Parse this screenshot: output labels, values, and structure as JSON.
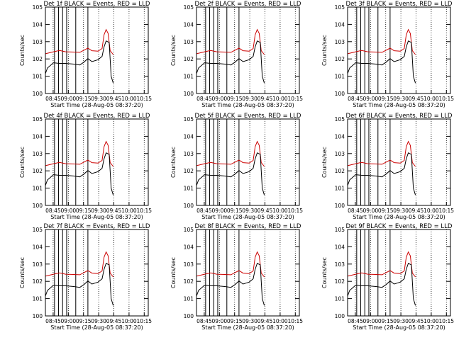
{
  "figure": {
    "xlabel": "Start Time (28-Aug-05 08:37:20)",
    "ylabel": "Counts/sec"
  },
  "shared": {
    "type": "line",
    "yscale": "log",
    "ylim": [
      1,
      100000
    ],
    "ytick_labels": [
      "10^0",
      "10^1",
      "10^2",
      "10^3",
      "10^4",
      "10^5"
    ],
    "xlim": [
      "08:37:20",
      "10:19:00"
    ],
    "xtick_labels": [
      "08:45",
      "09:00",
      "09:15",
      "09:30",
      "09:45",
      "10:00",
      "10:15"
    ],
    "series_colors": {
      "events": "#000000",
      "lld": "#cc0000"
    }
  },
  "chart_data": [
    {
      "title": "Det 1f BLACK = Events, RED = LLD",
      "events": [
        [
          0,
          14
        ],
        [
          2,
          30
        ],
        [
          8,
          60
        ],
        [
          14,
          55
        ],
        [
          20,
          55
        ],
        [
          28,
          50
        ],
        [
          34,
          45
        ],
        [
          38,
          65
        ],
        [
          42,
          105
        ],
        [
          46,
          70
        ],
        [
          52,
          90
        ],
        [
          56,
          140
        ],
        [
          58,
          500
        ],
        [
          60,
          1100
        ],
        [
          63,
          900
        ],
        [
          65,
          10
        ],
        [
          67,
          4
        ]
      ],
      "lld": [
        [
          0,
          200
        ],
        [
          8,
          260
        ],
        [
          14,
          310
        ],
        [
          20,
          260
        ],
        [
          28,
          250
        ],
        [
          34,
          240
        ],
        [
          38,
          320
        ],
        [
          42,
          420
        ],
        [
          46,
          300
        ],
        [
          52,
          280
        ],
        [
          56,
          400
        ],
        [
          58,
          2500
        ],
        [
          60,
          5000
        ],
        [
          62,
          3000
        ],
        [
          64,
          300
        ],
        [
          67,
          180
        ]
      ],
      "vlines": [
        9,
        13,
        17,
        21,
        30,
        42
      ]
    },
    {
      "title": "Det 2f BLACK = Events, RED = LLD",
      "events": [
        [
          0,
          14
        ],
        [
          2,
          30
        ],
        [
          8,
          60
        ],
        [
          14,
          55
        ],
        [
          20,
          55
        ],
        [
          28,
          50
        ],
        [
          34,
          45
        ],
        [
          38,
          65
        ],
        [
          42,
          105
        ],
        [
          46,
          70
        ],
        [
          52,
          90
        ],
        [
          56,
          140
        ],
        [
          58,
          500
        ],
        [
          60,
          1100
        ],
        [
          63,
          900
        ],
        [
          65,
          10
        ],
        [
          67,
          4
        ]
      ],
      "lld": [
        [
          0,
          200
        ],
        [
          8,
          260
        ],
        [
          14,
          310
        ],
        [
          20,
          260
        ],
        [
          28,
          250
        ],
        [
          34,
          240
        ],
        [
          38,
          320
        ],
        [
          42,
          420
        ],
        [
          46,
          300
        ],
        [
          52,
          280
        ],
        [
          56,
          400
        ],
        [
          58,
          2500
        ],
        [
          60,
          5000
        ],
        [
          62,
          3000
        ],
        [
          64,
          300
        ],
        [
          67,
          180
        ]
      ],
      "vlines": [
        9,
        13,
        17,
        21,
        30,
        42
      ]
    },
    {
      "title": "Det 3f BLACK = Events, RED = LLD",
      "events": [
        [
          0,
          14
        ],
        [
          2,
          30
        ],
        [
          8,
          60
        ],
        [
          14,
          55
        ],
        [
          20,
          55
        ],
        [
          28,
          50
        ],
        [
          34,
          45
        ],
        [
          38,
          65
        ],
        [
          42,
          105
        ],
        [
          46,
          70
        ],
        [
          52,
          90
        ],
        [
          56,
          140
        ],
        [
          58,
          500
        ],
        [
          60,
          1100
        ],
        [
          63,
          900
        ],
        [
          65,
          10
        ],
        [
          67,
          4
        ]
      ],
      "lld": [
        [
          0,
          200
        ],
        [
          8,
          260
        ],
        [
          14,
          310
        ],
        [
          20,
          260
        ],
        [
          28,
          250
        ],
        [
          34,
          240
        ],
        [
          38,
          320
        ],
        [
          42,
          420
        ],
        [
          46,
          300
        ],
        [
          52,
          280
        ],
        [
          56,
          400
        ],
        [
          58,
          2500
        ],
        [
          60,
          5000
        ],
        [
          62,
          3000
        ],
        [
          64,
          300
        ],
        [
          67,
          180
        ]
      ],
      "vlines": [
        9,
        13,
        17,
        21,
        30,
        42
      ]
    },
    {
      "title": "Det 4f BLACK = Events, RED = LLD",
      "events": [
        [
          0,
          14
        ],
        [
          2,
          30
        ],
        [
          8,
          60
        ],
        [
          14,
          55
        ],
        [
          20,
          55
        ],
        [
          28,
          50
        ],
        [
          34,
          45
        ],
        [
          38,
          65
        ],
        [
          42,
          105
        ],
        [
          46,
          70
        ],
        [
          52,
          90
        ],
        [
          56,
          140
        ],
        [
          58,
          500
        ],
        [
          60,
          1100
        ],
        [
          63,
          900
        ],
        [
          65,
          10
        ],
        [
          67,
          4
        ]
      ],
      "lld": [
        [
          0,
          200
        ],
        [
          8,
          260
        ],
        [
          14,
          310
        ],
        [
          20,
          260
        ],
        [
          28,
          250
        ],
        [
          34,
          240
        ],
        [
          38,
          320
        ],
        [
          42,
          420
        ],
        [
          46,
          300
        ],
        [
          52,
          280
        ],
        [
          56,
          400
        ],
        [
          58,
          2500
        ],
        [
          60,
          5000
        ],
        [
          62,
          3000
        ],
        [
          64,
          300
        ],
        [
          67,
          180
        ]
      ],
      "vlines": [
        9,
        13,
        17,
        21,
        30,
        42
      ]
    },
    {
      "title": "Det 5f BLACK = Events, RED = LLD",
      "events": [
        [
          0,
          14
        ],
        [
          2,
          30
        ],
        [
          8,
          60
        ],
        [
          14,
          55
        ],
        [
          20,
          55
        ],
        [
          28,
          50
        ],
        [
          34,
          45
        ],
        [
          38,
          65
        ],
        [
          42,
          105
        ],
        [
          46,
          70
        ],
        [
          52,
          90
        ],
        [
          56,
          140
        ],
        [
          58,
          500
        ],
        [
          60,
          1100
        ],
        [
          63,
          900
        ],
        [
          65,
          10
        ],
        [
          67,
          4
        ]
      ],
      "lld": [
        [
          0,
          200
        ],
        [
          8,
          260
        ],
        [
          14,
          310
        ],
        [
          20,
          260
        ],
        [
          28,
          250
        ],
        [
          34,
          240
        ],
        [
          38,
          320
        ],
        [
          42,
          420
        ],
        [
          46,
          300
        ],
        [
          52,
          280
        ],
        [
          56,
          400
        ],
        [
          58,
          2500
        ],
        [
          60,
          5000
        ],
        [
          62,
          3000
        ],
        [
          64,
          300
        ],
        [
          67,
          180
        ]
      ],
      "vlines": [
        9,
        13,
        17,
        21,
        30,
        42
      ]
    },
    {
      "title": "Det 6f BLACK = Events, RED = LLD",
      "events": [
        [
          0,
          14
        ],
        [
          2,
          30
        ],
        [
          8,
          60
        ],
        [
          14,
          55
        ],
        [
          20,
          55
        ],
        [
          28,
          50
        ],
        [
          34,
          45
        ],
        [
          38,
          65
        ],
        [
          42,
          105
        ],
        [
          46,
          70
        ],
        [
          52,
          90
        ],
        [
          56,
          140
        ],
        [
          58,
          500
        ],
        [
          60,
          1100
        ],
        [
          63,
          900
        ],
        [
          65,
          10
        ],
        [
          67,
          4
        ]
      ],
      "lld": [
        [
          0,
          200
        ],
        [
          8,
          260
        ],
        [
          14,
          310
        ],
        [
          20,
          260
        ],
        [
          28,
          250
        ],
        [
          34,
          240
        ],
        [
          38,
          320
        ],
        [
          42,
          420
        ],
        [
          46,
          300
        ],
        [
          52,
          280
        ],
        [
          56,
          400
        ],
        [
          58,
          2500
        ],
        [
          60,
          5000
        ],
        [
          62,
          3000
        ],
        [
          64,
          300
        ],
        [
          67,
          180
        ]
      ],
      "vlines": [
        9,
        13,
        17,
        21,
        30,
        42
      ]
    },
    {
      "title": "Det 7f BLACK = Events, RED = LLD",
      "events": [
        [
          0,
          14
        ],
        [
          2,
          30
        ],
        [
          8,
          60
        ],
        [
          14,
          55
        ],
        [
          20,
          55
        ],
        [
          28,
          50
        ],
        [
          34,
          45
        ],
        [
          38,
          65
        ],
        [
          42,
          105
        ],
        [
          46,
          70
        ],
        [
          52,
          90
        ],
        [
          56,
          140
        ],
        [
          58,
          500
        ],
        [
          60,
          1100
        ],
        [
          63,
          900
        ],
        [
          65,
          10
        ],
        [
          67,
          4
        ]
      ],
      "lld": [
        [
          0,
          200
        ],
        [
          8,
          260
        ],
        [
          14,
          310
        ],
        [
          20,
          260
        ],
        [
          28,
          250
        ],
        [
          34,
          240
        ],
        [
          38,
          320
        ],
        [
          42,
          420
        ],
        [
          46,
          300
        ],
        [
          52,
          280
        ],
        [
          56,
          400
        ],
        [
          58,
          2500
        ],
        [
          60,
          5000
        ],
        [
          62,
          3000
        ],
        [
          64,
          300
        ],
        [
          67,
          180
        ]
      ],
      "vlines": [
        9,
        13,
        17,
        21,
        30,
        42
      ]
    },
    {
      "title": "Det 8f BLACK = Events, RED = LLD",
      "events": [
        [
          0,
          14
        ],
        [
          2,
          30
        ],
        [
          8,
          60
        ],
        [
          14,
          55
        ],
        [
          20,
          55
        ],
        [
          28,
          50
        ],
        [
          34,
          45
        ],
        [
          38,
          65
        ],
        [
          42,
          105
        ],
        [
          46,
          70
        ],
        [
          52,
          90
        ],
        [
          56,
          140
        ],
        [
          58,
          500
        ],
        [
          60,
          1100
        ],
        [
          63,
          900
        ],
        [
          65,
          10
        ],
        [
          67,
          4
        ]
      ],
      "lld": [
        [
          0,
          200
        ],
        [
          8,
          260
        ],
        [
          14,
          310
        ],
        [
          20,
          260
        ],
        [
          28,
          250
        ],
        [
          34,
          240
        ],
        [
          38,
          320
        ],
        [
          42,
          420
        ],
        [
          46,
          300
        ],
        [
          52,
          280
        ],
        [
          56,
          400
        ],
        [
          58,
          2500
        ],
        [
          60,
          5000
        ],
        [
          62,
          3000
        ],
        [
          64,
          300
        ],
        [
          67,
          180
        ]
      ],
      "vlines": [
        9,
        13,
        17,
        21,
        30,
        42
      ]
    },
    {
      "title": "Det 9f BLACK = Events, RED = LLD",
      "events": [
        [
          0,
          14
        ],
        [
          2,
          30
        ],
        [
          8,
          60
        ],
        [
          14,
          55
        ],
        [
          20,
          55
        ],
        [
          28,
          50
        ],
        [
          34,
          45
        ],
        [
          38,
          65
        ],
        [
          42,
          105
        ],
        [
          46,
          70
        ],
        [
          52,
          90
        ],
        [
          56,
          140
        ],
        [
          58,
          500
        ],
        [
          60,
          1100
        ],
        [
          63,
          900
        ],
        [
          65,
          10
        ],
        [
          67,
          4
        ]
      ],
      "lld": [
        [
          0,
          200
        ],
        [
          8,
          260
        ],
        [
          14,
          310
        ],
        [
          20,
          260
        ],
        [
          28,
          250
        ],
        [
          34,
          240
        ],
        [
          38,
          320
        ],
        [
          42,
          420
        ],
        [
          46,
          300
        ],
        [
          52,
          280
        ],
        [
          56,
          400
        ],
        [
          58,
          2500
        ],
        [
          60,
          5000
        ],
        [
          62,
          3000
        ],
        [
          64,
          300
        ],
        [
          67,
          180
        ]
      ],
      "vlines": [
        9,
        13,
        17,
        21,
        30,
        42
      ]
    }
  ]
}
